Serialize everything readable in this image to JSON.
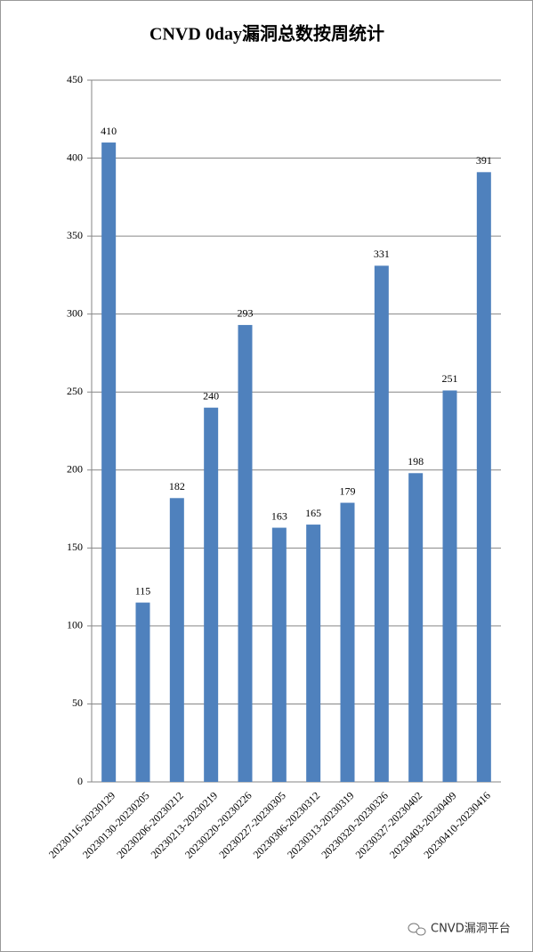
{
  "chart_data": {
    "type": "bar",
    "title": "CNVD 0day漏洞总数按周统计",
    "categories": [
      "20230116-20230129",
      "20230130-20230205",
      "20230206-20230212",
      "20230213-20230219",
      "20230220-20230226",
      "20230227-20230305",
      "20230306-20230312",
      "20230313-20230319",
      "20230320-20230326",
      "20230327-20230402",
      "20230403-20230409",
      "20230410-20230416"
    ],
    "values": [
      410,
      115,
      182,
      240,
      293,
      163,
      165,
      179,
      331,
      198,
      251,
      391
    ],
    "color": "#4f81bd",
    "ylim": [
      0,
      450
    ],
    "yticks": [
      0,
      50,
      100,
      150,
      200,
      250,
      300,
      350,
      400,
      450
    ],
    "grid": true
  },
  "watermark": "CNVD漏洞平台"
}
